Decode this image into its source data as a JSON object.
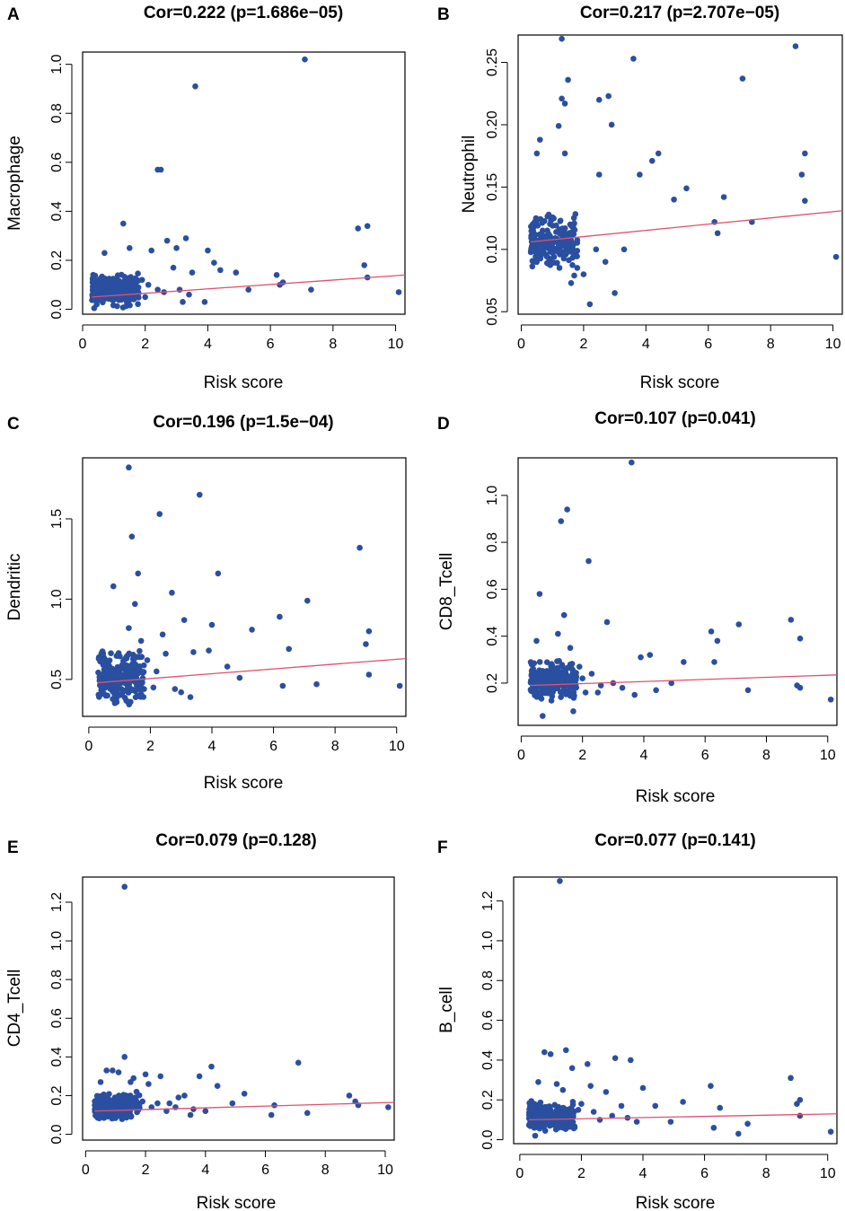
{
  "figure": {
    "accent_point_color": "#2a4fa0",
    "fit_line_color": "#e0506e"
  },
  "chart_data": [
    {
      "panel": "A",
      "type": "scatter",
      "title": "Cor=0.222 (p=1.686e−05)",
      "xlabel": "Risk score",
      "ylabel": "Macrophage",
      "xlim": [
        0,
        10.3
      ],
      "ylim": [
        -0.02,
        1.05
      ],
      "xticks": [
        0,
        2,
        4,
        6,
        8,
        10
      ],
      "yticks": [
        0.0,
        0.2,
        0.4,
        0.6,
        0.8,
        1.0
      ],
      "ytick_labels": [
        "0.0",
        "0.2",
        "0.4",
        "0.6",
        "0.8",
        "1.0"
      ],
      "fit_line": {
        "x": [
          0.3,
          10.3
        ],
        "y": [
          0.05,
          0.14
        ]
      },
      "cluster": {
        "x_range": [
          0.3,
          1.8
        ],
        "y_range": [
          0.0,
          0.15
        ],
        "n": 230,
        "seed": 11
      },
      "points": [
        {
          "x": 7.1,
          "y": 1.02
        },
        {
          "x": 3.6,
          "y": 0.91
        },
        {
          "x": 2.4,
          "y": 0.57
        },
        {
          "x": 2.5,
          "y": 0.57
        },
        {
          "x": 9.1,
          "y": 0.34
        },
        {
          "x": 8.8,
          "y": 0.33
        },
        {
          "x": 1.3,
          "y": 0.35
        },
        {
          "x": 3.3,
          "y": 0.29
        },
        {
          "x": 2.7,
          "y": 0.28
        },
        {
          "x": 4.0,
          "y": 0.24
        },
        {
          "x": 1.5,
          "y": 0.25
        },
        {
          "x": 3.0,
          "y": 0.25
        },
        {
          "x": 2.2,
          "y": 0.24
        },
        {
          "x": 0.7,
          "y": 0.23
        },
        {
          "x": 4.2,
          "y": 0.19
        },
        {
          "x": 4.4,
          "y": 0.16
        },
        {
          "x": 3.5,
          "y": 0.15
        },
        {
          "x": 2.9,
          "y": 0.17
        },
        {
          "x": 4.9,
          "y": 0.15
        },
        {
          "x": 6.2,
          "y": 0.14
        },
        {
          "x": 9.0,
          "y": 0.18
        },
        {
          "x": 9.1,
          "y": 0.13
        },
        {
          "x": 6.4,
          "y": 0.11
        },
        {
          "x": 6.3,
          "y": 0.1
        },
        {
          "x": 5.3,
          "y": 0.08
        },
        {
          "x": 7.3,
          "y": 0.08
        },
        {
          "x": 10.1,
          "y": 0.07
        },
        {
          "x": 3.1,
          "y": 0.08
        },
        {
          "x": 2.6,
          "y": 0.07
        },
        {
          "x": 3.9,
          "y": 0.03
        },
        {
          "x": 3.2,
          "y": 0.03
        },
        {
          "x": 2.1,
          "y": 0.1
        },
        {
          "x": 2.0,
          "y": 0.05
        },
        {
          "x": 2.4,
          "y": 0.08
        },
        {
          "x": 3.4,
          "y": 0.06
        },
        {
          "x": 1.9,
          "y": 0.12
        }
      ]
    },
    {
      "panel": "B",
      "type": "scatter",
      "title": "Cor=0.217 (p=2.707e−05)",
      "xlabel": "Risk score",
      "ylabel": "Neutrophil",
      "xlim": [
        -0.1,
        10.3
      ],
      "ylim": [
        0.048,
        0.272
      ],
      "xticks": [
        0,
        2,
        4,
        6,
        8,
        10
      ],
      "yticks": [
        0.05,
        0.1,
        0.15,
        0.2,
        0.25
      ],
      "ytick_labels": [
        "0.05",
        "0.10",
        "0.15",
        "0.20",
        "0.25"
      ],
      "fit_line": {
        "x": [
          0.3,
          10.3
        ],
        "y": [
          0.106,
          0.131
        ]
      },
      "cluster": {
        "x_range": [
          0.3,
          1.8
        ],
        "y_range": [
          0.083,
          0.13
        ],
        "n": 230,
        "seed": 23
      },
      "points": [
        {
          "x": 1.3,
          "y": 0.269
        },
        {
          "x": 8.8,
          "y": 0.263
        },
        {
          "x": 3.6,
          "y": 0.253
        },
        {
          "x": 7.1,
          "y": 0.237
        },
        {
          "x": 1.5,
          "y": 0.236
        },
        {
          "x": 2.8,
          "y": 0.223
        },
        {
          "x": 1.3,
          "y": 0.221
        },
        {
          "x": 2.5,
          "y": 0.22
        },
        {
          "x": 1.4,
          "y": 0.217
        },
        {
          "x": 2.9,
          "y": 0.2
        },
        {
          "x": 1.2,
          "y": 0.199
        },
        {
          "x": 0.6,
          "y": 0.188
        },
        {
          "x": 9.1,
          "y": 0.177
        },
        {
          "x": 4.4,
          "y": 0.177
        },
        {
          "x": 1.4,
          "y": 0.177
        },
        {
          "x": 0.5,
          "y": 0.177
        },
        {
          "x": 4.2,
          "y": 0.171
        },
        {
          "x": 2.5,
          "y": 0.16
        },
        {
          "x": 3.8,
          "y": 0.16
        },
        {
          "x": 9.0,
          "y": 0.16
        },
        {
          "x": 5.3,
          "y": 0.149
        },
        {
          "x": 9.1,
          "y": 0.139
        },
        {
          "x": 4.9,
          "y": 0.14
        },
        {
          "x": 6.5,
          "y": 0.142
        },
        {
          "x": 6.2,
          "y": 0.122
        },
        {
          "x": 7.4,
          "y": 0.122
        },
        {
          "x": 6.3,
          "y": 0.113
        },
        {
          "x": 10.1,
          "y": 0.094
        },
        {
          "x": 3.0,
          "y": 0.065
        },
        {
          "x": 2.2,
          "y": 0.056
        },
        {
          "x": 2.0,
          "y": 0.08
        },
        {
          "x": 2.4,
          "y": 0.1
        },
        {
          "x": 3.3,
          "y": 0.1
        },
        {
          "x": 2.7,
          "y": 0.09
        },
        {
          "x": 1.6,
          "y": 0.073
        },
        {
          "x": 1.7,
          "y": 0.079
        }
      ]
    },
    {
      "panel": "C",
      "type": "scatter",
      "title": "Cor=0.196 (p=1.5e−04)",
      "xlabel": "Risk score",
      "ylabel": "Dendritic",
      "xlim": [
        -0.2,
        10.3
      ],
      "ylim": [
        0.27,
        1.88
      ],
      "xticks": [
        0,
        2,
        4,
        6,
        8,
        10
      ],
      "yticks": [
        0.5,
        1.0,
        1.5
      ],
      "ytick_labels": [
        "0.5",
        "1.0",
        "1.5"
      ],
      "fit_line": {
        "x": [
          0.3,
          10.3
        ],
        "y": [
          0.48,
          0.63
        ]
      },
      "cluster": {
        "x_range": [
          0.3,
          1.8
        ],
        "y_range": [
          0.33,
          0.7
        ],
        "n": 230,
        "seed": 37
      },
      "points": [
        {
          "x": 1.3,
          "y": 1.82
        },
        {
          "x": 3.6,
          "y": 1.65
        },
        {
          "x": 2.3,
          "y": 1.53
        },
        {
          "x": 1.4,
          "y": 1.39
        },
        {
          "x": 8.8,
          "y": 1.32
        },
        {
          "x": 1.6,
          "y": 1.16
        },
        {
          "x": 4.2,
          "y": 1.16
        },
        {
          "x": 0.8,
          "y": 1.08
        },
        {
          "x": 2.7,
          "y": 1.04
        },
        {
          "x": 7.1,
          "y": 0.99
        },
        {
          "x": 1.5,
          "y": 0.97
        },
        {
          "x": 6.2,
          "y": 0.89
        },
        {
          "x": 3.1,
          "y": 0.87
        },
        {
          "x": 4.0,
          "y": 0.84
        },
        {
          "x": 1.3,
          "y": 0.82
        },
        {
          "x": 5.3,
          "y": 0.81
        },
        {
          "x": 9.1,
          "y": 0.8
        },
        {
          "x": 2.4,
          "y": 0.78
        },
        {
          "x": 9.0,
          "y": 0.72
        },
        {
          "x": 6.5,
          "y": 0.69
        },
        {
          "x": 3.9,
          "y": 0.68
        },
        {
          "x": 3.4,
          "y": 0.67
        },
        {
          "x": 2.5,
          "y": 0.66
        },
        {
          "x": 4.5,
          "y": 0.58
        },
        {
          "x": 4.9,
          "y": 0.51
        },
        {
          "x": 9.1,
          "y": 0.53
        },
        {
          "x": 6.3,
          "y": 0.46
        },
        {
          "x": 7.4,
          "y": 0.47
        },
        {
          "x": 10.1,
          "y": 0.46
        },
        {
          "x": 3.3,
          "y": 0.39
        },
        {
          "x": 2.1,
          "y": 0.45
        },
        {
          "x": 2.8,
          "y": 0.44
        },
        {
          "x": 2.2,
          "y": 0.55
        },
        {
          "x": 1.9,
          "y": 0.62
        },
        {
          "x": 3.0,
          "y": 0.42
        },
        {
          "x": 1.7,
          "y": 0.74
        }
      ]
    },
    {
      "panel": "D",
      "type": "scatter",
      "title": "Cor=0.107 (p=0.041)",
      "xlabel": "Risk score",
      "ylabel": "CD8_Tcell",
      "xlim": [
        -0.1,
        10.3
      ],
      "ylim": [
        0.02,
        1.16
      ],
      "xticks": [
        0,
        2,
        4,
        6,
        8,
        10
      ],
      "yticks": [
        0.2,
        0.4,
        0.6,
        0.8,
        1.0
      ],
      "ytick_labels": [
        "0.2",
        "0.4",
        "0.6",
        "0.8",
        "1.0"
      ],
      "fit_line": {
        "x": [
          0.3,
          10.3
        ],
        "y": [
          0.19,
          0.235
        ]
      },
      "cluster": {
        "x_range": [
          0.3,
          1.8
        ],
        "y_range": [
          0.12,
          0.3
        ],
        "n": 230,
        "seed": 41
      },
      "points": [
        {
          "x": 3.6,
          "y": 1.14
        },
        {
          "x": 1.5,
          "y": 0.94
        },
        {
          "x": 1.3,
          "y": 0.89
        },
        {
          "x": 2.2,
          "y": 0.72
        },
        {
          "x": 0.6,
          "y": 0.58
        },
        {
          "x": 1.4,
          "y": 0.49
        },
        {
          "x": 2.8,
          "y": 0.46
        },
        {
          "x": 8.8,
          "y": 0.47
        },
        {
          "x": 7.1,
          "y": 0.45
        },
        {
          "x": 6.2,
          "y": 0.42
        },
        {
          "x": 1.2,
          "y": 0.41
        },
        {
          "x": 9.1,
          "y": 0.39
        },
        {
          "x": 6.4,
          "y": 0.38
        },
        {
          "x": 0.5,
          "y": 0.38
        },
        {
          "x": 1.6,
          "y": 0.35
        },
        {
          "x": 4.2,
          "y": 0.32
        },
        {
          "x": 3.9,
          "y": 0.31
        },
        {
          "x": 5.3,
          "y": 0.29
        },
        {
          "x": 6.3,
          "y": 0.29
        },
        {
          "x": 2.3,
          "y": 0.24
        },
        {
          "x": 2.0,
          "y": 0.22
        },
        {
          "x": 4.9,
          "y": 0.2
        },
        {
          "x": 3.0,
          "y": 0.2
        },
        {
          "x": 9.0,
          "y": 0.19
        },
        {
          "x": 9.1,
          "y": 0.18
        },
        {
          "x": 4.4,
          "y": 0.17
        },
        {
          "x": 7.4,
          "y": 0.17
        },
        {
          "x": 3.7,
          "y": 0.15
        },
        {
          "x": 10.1,
          "y": 0.13
        },
        {
          "x": 2.5,
          "y": 0.16
        },
        {
          "x": 1.7,
          "y": 0.08
        },
        {
          "x": 0.7,
          "y": 0.06
        },
        {
          "x": 2.1,
          "y": 0.16
        },
        {
          "x": 2.6,
          "y": 0.19
        },
        {
          "x": 3.3,
          "y": 0.18
        },
        {
          "x": 1.9,
          "y": 0.27
        }
      ]
    },
    {
      "panel": "E",
      "type": "scatter",
      "title": "Cor=0.079 (p=0.128)",
      "xlabel": "Risk score",
      "ylabel": "CD4_Tcell",
      "xlim": [
        -0.1,
        10.3
      ],
      "ylim": [
        -0.03,
        1.33
      ],
      "xticks": [
        0,
        2,
        4,
        6,
        8,
        10
      ],
      "yticks": [
        0.0,
        0.2,
        0.4,
        0.6,
        0.8,
        1.0,
        1.2
      ],
      "ytick_labels": [
        "0.0",
        "0.2",
        "0.4",
        "0.6",
        "0.8",
        "1.0",
        "1.2"
      ],
      "fit_line": {
        "x": [
          0.3,
          10.3
        ],
        "y": [
          0.12,
          0.165
        ]
      },
      "cluster": {
        "x_range": [
          0.3,
          1.8
        ],
        "y_range": [
          0.07,
          0.22
        ],
        "n": 230,
        "seed": 53
      },
      "points": [
        {
          "x": 1.3,
          "y": 1.28
        },
        {
          "x": 1.3,
          "y": 0.4
        },
        {
          "x": 7.1,
          "y": 0.37
        },
        {
          "x": 4.2,
          "y": 0.35
        },
        {
          "x": 0.9,
          "y": 0.33
        },
        {
          "x": 1.1,
          "y": 0.32
        },
        {
          "x": 0.7,
          "y": 0.33
        },
        {
          "x": 2.0,
          "y": 0.31
        },
        {
          "x": 2.5,
          "y": 0.3
        },
        {
          "x": 1.6,
          "y": 0.29
        },
        {
          "x": 3.8,
          "y": 0.3
        },
        {
          "x": 4.4,
          "y": 0.25
        },
        {
          "x": 2.1,
          "y": 0.26
        },
        {
          "x": 1.5,
          "y": 0.27
        },
        {
          "x": 8.8,
          "y": 0.2
        },
        {
          "x": 5.3,
          "y": 0.21
        },
        {
          "x": 3.3,
          "y": 0.2
        },
        {
          "x": 3.1,
          "y": 0.19
        },
        {
          "x": 9.0,
          "y": 0.17
        },
        {
          "x": 9.1,
          "y": 0.15
        },
        {
          "x": 6.3,
          "y": 0.15
        },
        {
          "x": 4.9,
          "y": 0.16
        },
        {
          "x": 10.1,
          "y": 0.14
        },
        {
          "x": 6.2,
          "y": 0.1
        },
        {
          "x": 7.4,
          "y": 0.11
        },
        {
          "x": 3.5,
          "y": 0.1
        },
        {
          "x": 2.7,
          "y": 0.12
        },
        {
          "x": 2.2,
          "y": 0.14
        },
        {
          "x": 1.9,
          "y": 0.17
        },
        {
          "x": 2.4,
          "y": 0.16
        },
        {
          "x": 3.0,
          "y": 0.14
        },
        {
          "x": 2.8,
          "y": 0.16
        },
        {
          "x": 3.6,
          "y": 0.13
        },
        {
          "x": 4.0,
          "y": 0.12
        },
        {
          "x": 1.7,
          "y": 0.22
        },
        {
          "x": 0.5,
          "y": 0.27
        }
      ]
    },
    {
      "panel": "F",
      "type": "scatter",
      "title": "Cor=0.077 (p=0.141)",
      "xlabel": "Risk score",
      "ylabel": "B_cell",
      "xlim": [
        -0.2,
        10.3
      ],
      "ylim": [
        -0.02,
        1.32
      ],
      "xticks": [
        0,
        2,
        4,
        6,
        8,
        10
      ],
      "yticks": [
        0.0,
        0.2,
        0.4,
        0.6,
        0.8,
        1.0,
        1.2
      ],
      "ytick_labels": [
        "0.0",
        "0.2",
        "0.4",
        "0.6",
        "0.8",
        "1.0",
        "1.2"
      ],
      "fit_line": {
        "x": [
          0.3,
          10.3
        ],
        "y": [
          0.1,
          0.13
        ]
      },
      "cluster": {
        "x_range": [
          0.3,
          1.8
        ],
        "y_range": [
          0.04,
          0.2
        ],
        "n": 230,
        "seed": 67
      },
      "points": [
        {
          "x": 1.3,
          "y": 1.3
        },
        {
          "x": 1.5,
          "y": 0.45
        },
        {
          "x": 0.8,
          "y": 0.44
        },
        {
          "x": 1.0,
          "y": 0.43
        },
        {
          "x": 3.1,
          "y": 0.41
        },
        {
          "x": 3.6,
          "y": 0.4
        },
        {
          "x": 2.2,
          "y": 0.38
        },
        {
          "x": 1.7,
          "y": 0.36
        },
        {
          "x": 8.8,
          "y": 0.31
        },
        {
          "x": 0.6,
          "y": 0.29
        },
        {
          "x": 1.2,
          "y": 0.28
        },
        {
          "x": 2.3,
          "y": 0.27
        },
        {
          "x": 6.2,
          "y": 0.27
        },
        {
          "x": 4.0,
          "y": 0.26
        },
        {
          "x": 2.8,
          "y": 0.24
        },
        {
          "x": 1.4,
          "y": 0.25
        },
        {
          "x": 9.1,
          "y": 0.2
        },
        {
          "x": 5.3,
          "y": 0.19
        },
        {
          "x": 9.0,
          "y": 0.18
        },
        {
          "x": 6.5,
          "y": 0.16
        },
        {
          "x": 3.3,
          "y": 0.17
        },
        {
          "x": 4.4,
          "y": 0.17
        },
        {
          "x": 2.0,
          "y": 0.18
        },
        {
          "x": 9.1,
          "y": 0.12
        },
        {
          "x": 4.9,
          "y": 0.09
        },
        {
          "x": 3.8,
          "y": 0.09
        },
        {
          "x": 6.3,
          "y": 0.06
        },
        {
          "x": 7.4,
          "y": 0.08
        },
        {
          "x": 7.1,
          "y": 0.03
        },
        {
          "x": 10.1,
          "y": 0.04
        },
        {
          "x": 2.6,
          "y": 0.1
        },
        {
          "x": 3.0,
          "y": 0.12
        },
        {
          "x": 2.4,
          "y": 0.14
        },
        {
          "x": 1.9,
          "y": 0.15
        },
        {
          "x": 3.5,
          "y": 0.11
        },
        {
          "x": 0.5,
          "y": 0.02
        }
      ]
    }
  ]
}
